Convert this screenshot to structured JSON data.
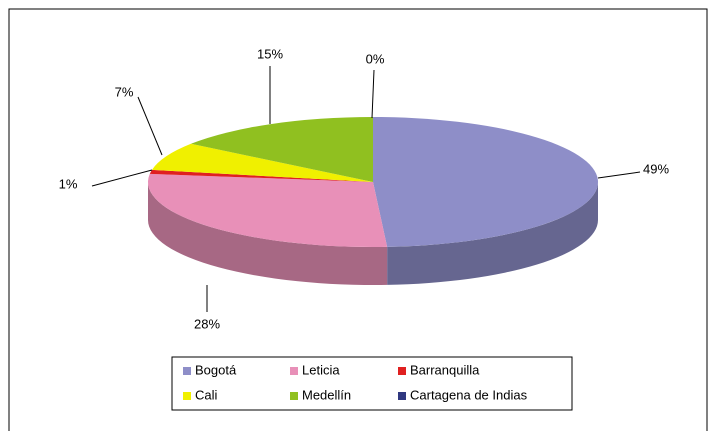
{
  "chart_data": {
    "type": "pie",
    "categories": [
      "Bogotá",
      "Leticia",
      "Barranquilla",
      "Cali",
      "Medellín",
      "Cartagena de Indias"
    ],
    "values": [
      49,
      28,
      1,
      7,
      15,
      0
    ],
    "value_labels": [
      "49%",
      "28%",
      "1%",
      "7%",
      "15%",
      "0%"
    ],
    "colors": [
      "#8e8ec8",
      "#e890b8",
      "#e02020",
      "#f0f000",
      "#90c020",
      "#303880"
    ],
    "legend": "bottom"
  }
}
